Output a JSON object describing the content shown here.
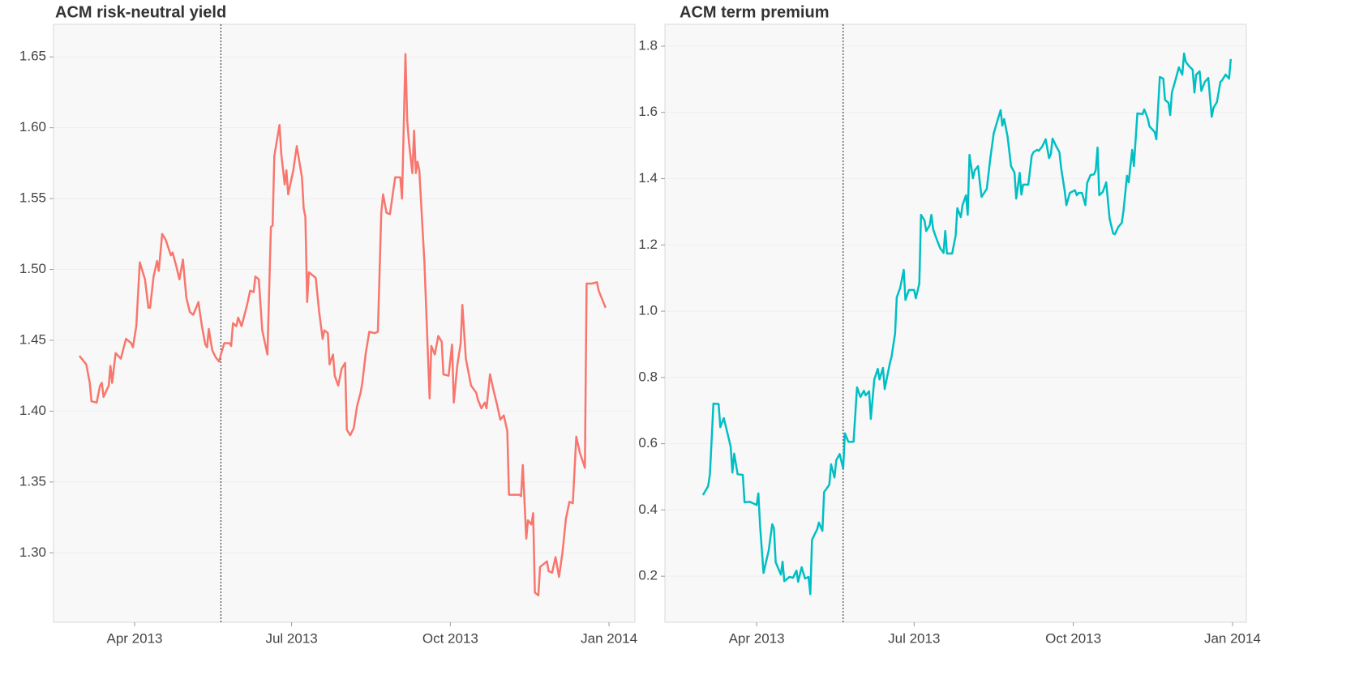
{
  "chart_data": [
    {
      "type": "line",
      "title": "ACM risk-neutral yield",
      "color": "#f8766d",
      "grid": true,
      "xlim": [
        "2013-02-13",
        "2014-01-16"
      ],
      "xticks": [
        {
          "value": "2013-04-01",
          "label": "Apr 2013"
        },
        {
          "value": "2013-07-01",
          "label": "Jul 2013"
        },
        {
          "value": "2013-10-01",
          "label": "Oct 2013"
        },
        {
          "value": "2014-01-01",
          "label": "Jan 2014"
        }
      ],
      "ylim": [
        1.251,
        1.673
      ],
      "yticks": [
        {
          "value": 1.3,
          "label": "1.30"
        },
        {
          "value": 1.35,
          "label": "1.35"
        },
        {
          "value": 1.4,
          "label": "1.40"
        },
        {
          "value": 1.45,
          "label": "1.45"
        },
        {
          "value": 1.5,
          "label": "1.50"
        },
        {
          "value": 1.55,
          "label": "1.55"
        },
        {
          "value": 1.6,
          "label": "1.60"
        },
        {
          "value": 1.65,
          "label": "1.65"
        }
      ],
      "vline": "2013-05-21",
      "x": [
        "2013-02-28",
        "2013-03-04",
        "2013-03-06",
        "2013-03-07",
        "2013-03-10",
        "2013-03-12",
        "2013-03-13",
        "2013-03-14",
        "2013-03-17",
        "2013-03-18",
        "2013-03-19",
        "2013-03-21",
        "2013-03-24",
        "2013-03-27",
        "2013-03-30",
        "2013-03-31",
        "2013-04-02",
        "2013-04-04",
        "2013-04-07",
        "2013-04-09",
        "2013-04-10",
        "2013-04-12",
        "2013-04-14",
        "2013-04-15",
        "2013-04-17",
        "2013-04-19",
        "2013-04-22",
        "2013-04-23",
        "2013-04-25",
        "2013-04-27",
        "2013-04-29",
        "2013-05-01",
        "2013-05-03",
        "2013-05-05",
        "2013-05-07",
        "2013-05-08",
        "2013-05-10",
        "2013-05-12",
        "2013-05-13",
        "2013-05-14",
        "2013-05-16",
        "2013-05-18",
        "2013-05-20",
        "2013-05-21",
        "2013-05-23",
        "2013-05-26",
        "2013-05-27",
        "2013-05-28",
        "2013-05-30",
        "2013-05-31",
        "2013-06-02",
        "2013-06-05",
        "2013-06-07",
        "2013-06-09",
        "2013-06-10",
        "2013-06-12",
        "2013-06-14",
        "2013-06-17",
        "2013-06-19",
        "2013-06-20",
        "2013-06-21",
        "2013-06-24",
        "2013-06-25",
        "2013-06-27",
        "2013-06-28",
        "2013-06-29",
        "2013-07-02",
        "2013-07-04",
        "2013-07-07",
        "2013-07-08",
        "2013-07-09",
        "2013-07-10",
        "2013-07-11",
        "2013-07-15",
        "2013-07-17",
        "2013-07-19",
        "2013-07-20",
        "2013-07-22",
        "2013-07-23",
        "2013-07-25",
        "2013-07-26",
        "2013-07-28",
        "2013-07-30",
        "2013-08-01",
        "2013-08-02",
        "2013-08-04",
        "2013-08-06",
        "2013-08-08",
        "2013-08-10",
        "2013-08-11",
        "2013-08-13",
        "2013-08-15",
        "2013-08-18",
        "2013-08-20",
        "2013-08-22",
        "2013-08-23",
        "2013-08-25",
        "2013-08-27",
        "2013-08-30",
        "2013-09-02",
        "2013-09-03",
        "2013-09-05",
        "2013-09-06",
        "2013-09-07",
        "2013-09-09",
        "2013-09-10",
        "2013-09-11",
        "2013-09-12",
        "2013-09-13",
        "2013-09-16",
        "2013-09-19",
        "2013-09-20",
        "2013-09-22",
        "2013-09-24",
        "2013-09-26",
        "2013-09-27",
        "2013-09-30",
        "2013-10-02",
        "2013-10-03",
        "2013-10-05",
        "2013-10-07",
        "2013-10-08",
        "2013-10-10",
        "2013-10-13",
        "2013-10-16",
        "2013-10-17",
        "2013-10-19",
        "2013-10-21",
        "2013-10-22",
        "2013-10-24",
        "2013-10-26",
        "2013-10-28",
        "2013-10-30",
        "2013-11-01",
        "2013-11-03",
        "2013-11-04",
        "2013-11-10",
        "2013-11-11",
        "2013-11-12",
        "2013-11-14",
        "2013-11-15",
        "2013-11-17",
        "2013-11-18",
        "2013-11-19",
        "2013-11-21",
        "2013-11-22",
        "2013-11-24",
        "2013-11-26",
        "2013-11-27",
        "2013-11-29",
        "2013-12-01",
        "2013-12-03",
        "2013-12-05",
        "2013-12-07",
        "2013-12-09",
        "2013-12-11",
        "2013-12-13",
        "2013-12-15",
        "2013-12-18",
        "2013-12-19",
        "2013-12-22",
        "2013-12-25",
        "2013-12-26",
        "2013-12-30"
      ],
      "values": [
        1.439,
        1.433,
        1.42,
        1.407,
        1.406,
        1.418,
        1.42,
        1.41,
        1.418,
        1.432,
        1.42,
        1.441,
        1.437,
        1.451,
        1.448,
        1.445,
        1.46,
        1.505,
        1.493,
        1.473,
        1.473,
        1.495,
        1.506,
        1.499,
        1.525,
        1.521,
        1.51,
        1.512,
        1.503,
        1.493,
        1.507,
        1.48,
        1.47,
        1.468,
        1.474,
        1.477,
        1.46,
        1.447,
        1.445,
        1.458,
        1.443,
        1.438,
        1.435,
        1.44,
        1.448,
        1.448,
        1.446,
        1.462,
        1.46,
        1.466,
        1.46,
        1.474,
        1.485,
        1.484,
        1.495,
        1.493,
        1.457,
        1.44,
        1.53,
        1.531,
        1.58,
        1.602,
        1.582,
        1.56,
        1.57,
        1.553,
        1.57,
        1.587,
        1.565,
        1.543,
        1.537,
        1.477,
        1.498,
        1.494,
        1.47,
        1.451,
        1.457,
        1.455,
        1.433,
        1.44,
        1.425,
        1.418,
        1.43,
        1.434,
        1.387,
        1.383,
        1.388,
        1.404,
        1.413,
        1.42,
        1.441,
        1.456,
        1.455,
        1.456,
        1.54,
        1.553,
        1.54,
        1.539,
        1.565,
        1.565,
        1.55,
        1.652,
        1.605,
        1.59,
        1.568,
        1.598,
        1.568,
        1.576,
        1.57,
        1.505,
        1.409,
        1.446,
        1.44,
        1.453,
        1.449,
        1.426,
        1.425,
        1.447,
        1.406,
        1.432,
        1.448,
        1.475,
        1.437,
        1.418,
        1.413,
        1.408,
        1.402,
        1.406,
        1.402,
        1.426,
        1.415,
        1.405,
        1.394,
        1.397,
        1.386,
        1.341,
        1.341,
        1.34,
        1.362,
        1.31,
        1.323,
        1.32,
        1.328,
        1.272,
        1.27,
        1.29,
        1.292,
        1.294,
        1.287,
        1.286,
        1.297,
        1.283,
        1.3,
        1.324,
        1.336,
        1.335,
        1.382,
        1.371,
        1.36,
        1.49,
        1.49,
        1.491,
        1.485,
        1.473
      ]
    },
    {
      "type": "line",
      "title": "ACM term premium",
      "color": "#00bfc4",
      "grid": true,
      "xlim": [
        "2013-02-07",
        "2014-01-09"
      ],
      "xticks": [
        {
          "value": "2013-04-01",
          "label": "Apr 2013"
        },
        {
          "value": "2013-07-01",
          "label": "Jul 2013"
        },
        {
          "value": "2013-10-01",
          "label": "Oct 2013"
        },
        {
          "value": "2014-01-01",
          "label": "Jan 2014"
        }
      ],
      "ylim": [
        0.061,
        1.866
      ],
      "yticks": [
        0.2,
        0.4,
        0.6,
        0.8,
        {
          "value": 1,
          "label": "1.0"
        },
        1.2,
        1.4,
        1.6,
        1.8
      ],
      "vline": "2013-05-21",
      "x": [
        "2013-03-01",
        "2013-03-04",
        "2013-03-05",
        "2013-03-07",
        "2013-03-10",
        "2013-03-11",
        "2013-03-13",
        "2013-03-15",
        "2013-03-17",
        "2013-03-18",
        "2013-03-19",
        "2013-03-21",
        "2013-03-24",
        "2013-03-25",
        "2013-03-28",
        "2013-04-01",
        "2013-04-02",
        "2013-04-03",
        "2013-04-05",
        "2013-04-08",
        "2013-04-10",
        "2013-04-11",
        "2013-04-12",
        "2013-04-15",
        "2013-04-16",
        "2013-04-17",
        "2013-04-20",
        "2013-04-22",
        "2013-04-24",
        "2013-04-25",
        "2013-04-27",
        "2013-04-29",
        "2013-05-01",
        "2013-05-02",
        "2013-05-03",
        "2013-05-06",
        "2013-05-07",
        "2013-05-09",
        "2013-05-10",
        "2013-05-13",
        "2013-05-14",
        "2013-05-16",
        "2013-05-17",
        "2013-05-19",
        "2013-05-21",
        "2013-05-22",
        "2013-05-24",
        "2013-05-27",
        "2013-05-29",
        "2013-05-31",
        "2013-06-02",
        "2013-06-03",
        "2013-06-05",
        "2013-06-06",
        "2013-06-08",
        "2013-06-10",
        "2013-06-11",
        "2013-06-13",
        "2013-06-14",
        "2013-06-17",
        "2013-06-18",
        "2013-06-20",
        "2013-06-21",
        "2013-06-23",
        "2013-06-25",
        "2013-06-26",
        "2013-06-28",
        "2013-07-01",
        "2013-07-02",
        "2013-07-04",
        "2013-07-05",
        "2013-07-07",
        "2013-07-08",
        "2013-07-10",
        "2013-07-11",
        "2013-07-12",
        "2013-07-14",
        "2013-07-16",
        "2013-07-18",
        "2013-07-19",
        "2013-07-20",
        "2013-07-23",
        "2013-07-25",
        "2013-07-26",
        "2013-07-28",
        "2013-07-29",
        "2013-07-31",
        "2013-08-01",
        "2013-08-02",
        "2013-08-04",
        "2013-08-05",
        "2013-08-07",
        "2013-08-08",
        "2013-08-09",
        "2013-08-12",
        "2013-08-14",
        "2013-08-16",
        "2013-08-18",
        "2013-08-20",
        "2013-08-21",
        "2013-08-22",
        "2013-08-24",
        "2013-08-26",
        "2013-08-28",
        "2013-08-29",
        "2013-08-31",
        "2013-09-01",
        "2013-09-02",
        "2013-09-05",
        "2013-09-07",
        "2013-09-08",
        "2013-09-10",
        "2013-09-11",
        "2013-09-13",
        "2013-09-15",
        "2013-09-17",
        "2013-09-18",
        "2013-09-19",
        "2013-09-21",
        "2013-09-23",
        "2013-09-24",
        "2013-09-26",
        "2013-09-27",
        "2013-09-29",
        "2013-09-30",
        "2013-10-02",
        "2013-10-03",
        "2013-10-04",
        "2013-10-06",
        "2013-10-08",
        "2013-10-09",
        "2013-10-11",
        "2013-10-13",
        "2013-10-14",
        "2013-10-15",
        "2013-10-16",
        "2013-10-18",
        "2013-10-20",
        "2013-10-22",
        "2013-10-24",
        "2013-10-25",
        "2013-10-27",
        "2013-10-29",
        "2013-10-30",
        "2013-11-01",
        "2013-11-02",
        "2013-11-04",
        "2013-11-05",
        "2013-11-07",
        "2013-11-10",
        "2013-11-11",
        "2013-11-13",
        "2013-11-14",
        "2013-11-17",
        "2013-11-18",
        "2013-11-20",
        "2013-11-22",
        "2013-11-23",
        "2013-11-25",
        "2013-11-26",
        "2013-11-27",
        "2013-11-29",
        "2013-12-01",
        "2013-12-03",
        "2013-12-04",
        "2013-12-05",
        "2013-12-07",
        "2013-12-09",
        "2013-12-10",
        "2013-12-11",
        "2013-12-13",
        "2013-12-14",
        "2013-12-16",
        "2013-12-18",
        "2013-12-20",
        "2013-12-21",
        "2013-12-23",
        "2013-12-25",
        "2013-12-26",
        "2013-12-28",
        "2013-12-30",
        "2013-12-31"
      ],
      "values": [
        0.445,
        0.472,
        0.508,
        0.721,
        0.72,
        0.65,
        0.677,
        0.635,
        0.591,
        0.513,
        0.57,
        0.508,
        0.506,
        0.423,
        0.425,
        0.415,
        0.45,
        0.35,
        0.21,
        0.278,
        0.357,
        0.345,
        0.242,
        0.205,
        0.244,
        0.185,
        0.198,
        0.195,
        0.217,
        0.183,
        0.227,
        0.193,
        0.198,
        0.146,
        0.31,
        0.342,
        0.362,
        0.337,
        0.454,
        0.476,
        0.538,
        0.498,
        0.55,
        0.569,
        0.525,
        0.631,
        0.606,
        0.606,
        0.77,
        0.741,
        0.76,
        0.746,
        0.758,
        0.675,
        0.794,
        0.826,
        0.794,
        0.829,
        0.765,
        0.843,
        0.863,
        0.932,
        1.042,
        1.071,
        1.125,
        1.034,
        1.064,
        1.064,
        1.039,
        1.083,
        1.291,
        1.274,
        1.242,
        1.259,
        1.291,
        1.247,
        1.218,
        1.191,
        1.176,
        1.242,
        1.174,
        1.174,
        1.228,
        1.311,
        1.284,
        1.32,
        1.35,
        1.291,
        1.472,
        1.401,
        1.425,
        1.438,
        1.387,
        1.345,
        1.369,
        1.46,
        1.536,
        1.572,
        1.607,
        1.56,
        1.58,
        1.528,
        1.438,
        1.418,
        1.34,
        1.418,
        1.352,
        1.382,
        1.382,
        1.47,
        1.48,
        1.487,
        1.484,
        1.497,
        1.519,
        1.462,
        1.474,
        1.521,
        1.499,
        1.48,
        1.431,
        1.365,
        1.32,
        1.357,
        1.36,
        1.365,
        1.35,
        1.357,
        1.357,
        1.32,
        1.387,
        1.411,
        1.413,
        1.426,
        1.494,
        1.35,
        1.36,
        1.389,
        1.279,
        1.235,
        1.232,
        1.254,
        1.267,
        1.303,
        1.409,
        1.389,
        1.487,
        1.438,
        1.597,
        1.595,
        1.609,
        1.582,
        1.558,
        1.541,
        1.519,
        1.707,
        1.702,
        1.638,
        1.629,
        1.592,
        1.66,
        1.697,
        1.736,
        1.714,
        1.778,
        1.753,
        1.739,
        1.729,
        1.66,
        1.714,
        1.724,
        1.665,
        1.692,
        1.704,
        1.587,
        1.614,
        1.631,
        1.692,
        1.697,
        1.714,
        1.702,
        1.761
      ]
    }
  ]
}
